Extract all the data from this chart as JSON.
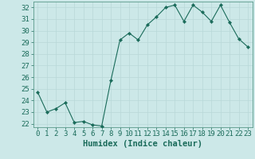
{
  "x": [
    0,
    1,
    2,
    3,
    4,
    5,
    6,
    7,
    8,
    9,
    10,
    11,
    12,
    13,
    14,
    15,
    16,
    17,
    18,
    19,
    20,
    21,
    22,
    23
  ],
  "y": [
    24.7,
    23.0,
    23.3,
    23.8,
    22.1,
    22.2,
    21.9,
    21.8,
    25.7,
    29.2,
    29.8,
    29.2,
    30.5,
    31.2,
    32.0,
    32.2,
    30.8,
    32.2,
    31.6,
    30.8,
    32.2,
    30.7,
    29.3,
    28.6
  ],
  "bg_color": "#cce8e8",
  "line_color": "#1a6b5a",
  "marker_color": "#1a6b5a",
  "grid_major_color": "#b8d8d8",
  "grid_minor_color": "#d4e8e8",
  "xlabel": "Humidex (Indice chaleur)",
  "ylim": [
    21.7,
    32.5
  ],
  "yticks": [
    22,
    23,
    24,
    25,
    26,
    27,
    28,
    29,
    30,
    31,
    32
  ],
  "xlim": [
    -0.5,
    23.5
  ],
  "xticks": [
    0,
    1,
    2,
    3,
    4,
    5,
    6,
    7,
    8,
    9,
    10,
    11,
    12,
    13,
    14,
    15,
    16,
    17,
    18,
    19,
    20,
    21,
    22,
    23
  ],
  "text_color": "#1a6b5a",
  "xlabel_fontsize": 7.5,
  "tick_fontsize": 6.5,
  "spine_color": "#5a9a8a"
}
